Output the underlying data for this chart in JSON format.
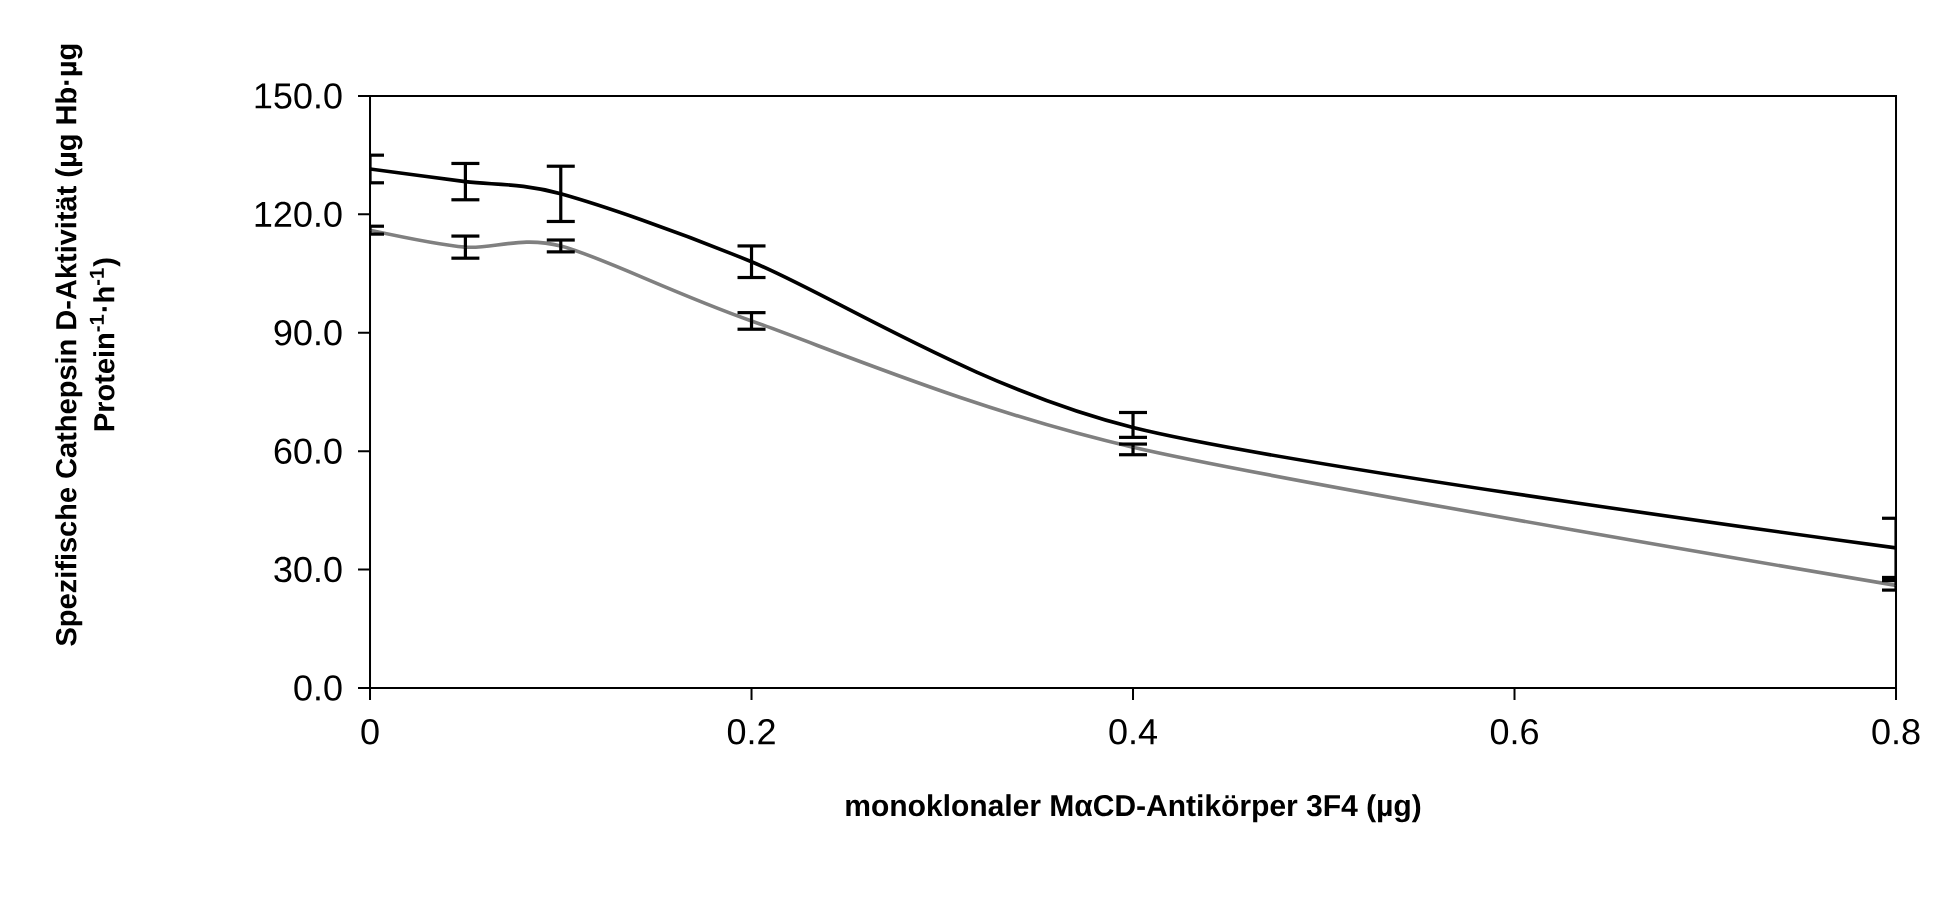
{
  "chart_data": {
    "type": "line",
    "xlabel": "monoklonaler MαCD-Antikörper 3F4 (µg)",
    "ylabel": "Spezifische Cathepsin D-Aktivität (µg Hb·µg Protein$^{-1}$·h$^{-1}$)",
    "x": [
      0,
      0.05,
      0.1,
      0.2,
      0.4,
      0.8
    ],
    "series": [
      {
        "color": "#000000",
        "values": [
          131.5,
          128.3,
          125.2,
          108,
          66,
          35.5
        ],
        "errors": [
          3.5,
          4.6,
          7,
          4,
          [
            63.5,
            69.8
          ],
          7.5
        ]
      },
      {
        "color": "#808080",
        "values": [
          116,
          111.7,
          112,
          93,
          61,
          26
        ],
        "errors": [
          1,
          2.8,
          1.5,
          2.1,
          [
            59.1,
            61.8
          ],
          [
            24.8,
            27.2
          ]
        ]
      }
    ],
    "xlim": [
      0,
      0.8
    ],
    "xticks": [
      0,
      0.2,
      0.4,
      0.6,
      0.8
    ],
    "ylim": [
      0,
      150
    ],
    "yticks": [
      {
        "value": 0,
        "label": "0.0"
      },
      {
        "value": 30,
        "label": "30.0"
      },
      {
        "value": 60,
        "label": "60.0"
      },
      {
        "value": 90,
        "label": "90.0"
      },
      {
        "value": 120,
        "label": "120.0"
      },
      {
        "value": 150,
        "label": "150.0"
      }
    ]
  }
}
